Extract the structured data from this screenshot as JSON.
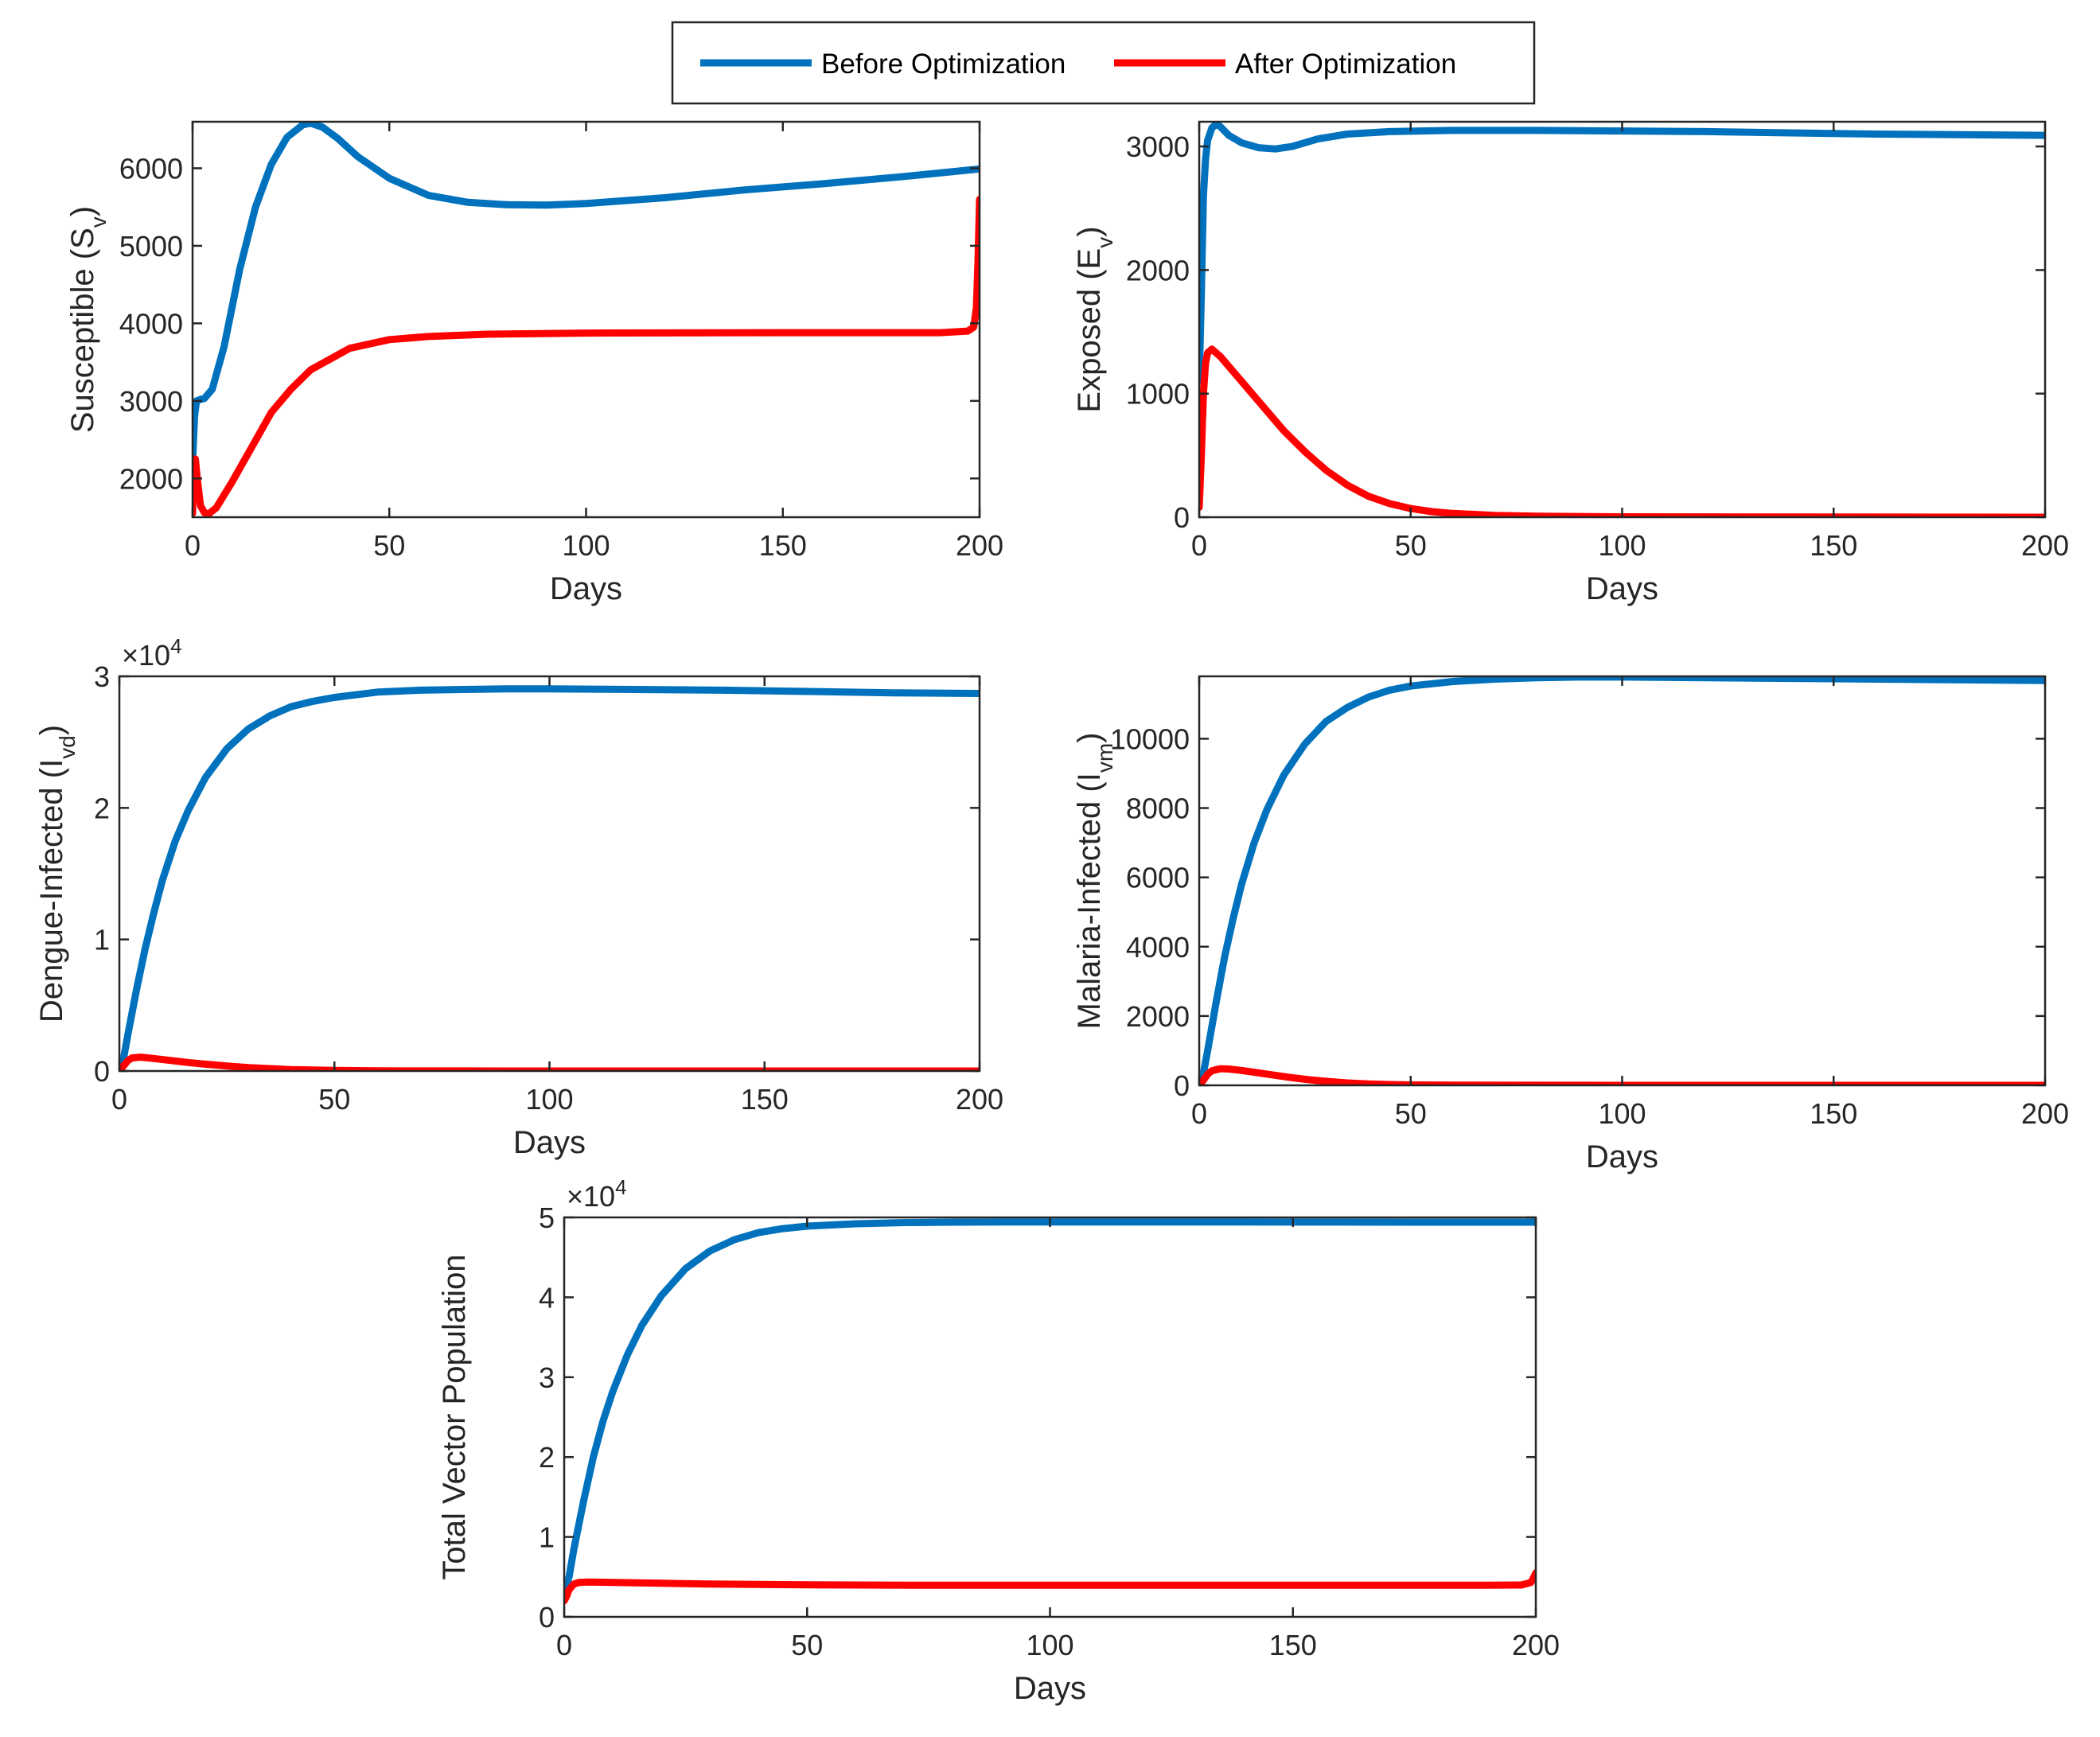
{
  "legend": {
    "entries": [
      {
        "label": "Before Optimization",
        "color": "#0072BD"
      },
      {
        "label": "After Optimization",
        "color": "#FF0000"
      }
    ]
  },
  "chart_data": [
    {
      "id": "susceptible",
      "type": "line",
      "xlabel": "Days",
      "ylabel": "Susceptible (S",
      "ylabel_sub": "v",
      "ylabel_close": ")",
      "exponent": null,
      "xlim": [
        0,
        200
      ],
      "ylim": [
        1500,
        6600
      ],
      "xticks": [
        0,
        50,
        100,
        150,
        200
      ],
      "xtick_labels": [
        "0",
        "50",
        "100",
        "150",
        "200"
      ],
      "yticks": [
        2000,
        3000,
        4000,
        5000,
        6000
      ],
      "ytick_labels": [
        "2000",
        "3000",
        "4000",
        "5000",
        "6000"
      ],
      "series": [
        {
          "name": "Before Optimization",
          "color": "#0072BD",
          "x": [
            0,
            0.5,
            1,
            2,
            3,
            5,
            8,
            12,
            16,
            20,
            24,
            28,
            30,
            33,
            37,
            42,
            50,
            60,
            70,
            80,
            90,
            100,
            120,
            140,
            160,
            180,
            200
          ],
          "y": [
            2200,
            2800,
            3000,
            3020,
            3030,
            3150,
            3700,
            4700,
            5500,
            6050,
            6400,
            6560,
            6580,
            6530,
            6380,
            6150,
            5870,
            5650,
            5560,
            5530,
            5525,
            5545,
            5620,
            5720,
            5800,
            5890,
            5990
          ]
        },
        {
          "name": "After Optimization",
          "color": "#FF0000",
          "x": [
            0,
            0.3,
            0.7,
            1.2,
            2,
            3,
            4,
            6,
            10,
            15,
            20,
            25,
            30,
            40,
            50,
            60,
            75,
            100,
            150,
            190,
            197,
            198.5,
            199.2,
            199.6,
            200
          ],
          "y": [
            1550,
            2200,
            2250,
            2000,
            1650,
            1560,
            1540,
            1620,
            1950,
            2400,
            2850,
            3150,
            3400,
            3680,
            3790,
            3830,
            3860,
            3875,
            3880,
            3880,
            3900,
            3950,
            4200,
            4800,
            5600
          ]
        }
      ]
    },
    {
      "id": "exposed",
      "type": "line",
      "xlabel": "Days",
      "ylabel": "Exposed (E",
      "ylabel_sub": "v",
      "ylabel_close": ")",
      "exponent": null,
      "xlim": [
        0,
        200
      ],
      "ylim": [
        0,
        3200
      ],
      "xticks": [
        0,
        50,
        100,
        150,
        200
      ],
      "xtick_labels": [
        "0",
        "50",
        "100",
        "150",
        "200"
      ],
      "yticks": [
        0,
        1000,
        2000,
        3000
      ],
      "ytick_labels": [
        "0",
        "1000",
        "2000",
        "3000"
      ],
      "series": [
        {
          "name": "Before Optimization",
          "color": "#0072BD",
          "x": [
            0,
            0.5,
            1,
            1.5,
            2,
            3,
            4,
            5,
            7,
            10,
            14,
            18,
            22,
            28,
            35,
            45,
            60,
            80,
            100,
            120,
            140,
            160,
            180,
            200
          ],
          "y": [
            1100,
            1800,
            2600,
            2900,
            3050,
            3150,
            3180,
            3160,
            3090,
            3030,
            2990,
            2980,
            3000,
            3060,
            3100,
            3120,
            3130,
            3130,
            3125,
            3120,
            3110,
            3100,
            3095,
            3090
          ]
        },
        {
          "name": "After Optimization",
          "color": "#FF0000",
          "x": [
            0,
            0.5,
            1,
            1.5,
            2,
            3,
            5,
            8,
            12,
            16,
            20,
            25,
            30,
            35,
            40,
            45,
            50,
            55,
            60,
            70,
            80,
            100,
            150,
            200
          ],
          "y": [
            80,
            500,
            1000,
            1250,
            1330,
            1360,
            1300,
            1180,
            1020,
            860,
            700,
            530,
            380,
            260,
            170,
            110,
            70,
            45,
            30,
            15,
            8,
            3,
            1,
            0
          ]
        }
      ]
    },
    {
      "id": "dengue",
      "type": "line",
      "xlabel": "Days",
      "ylabel": "Dengue-Infected (I",
      "ylabel_sub": "vd",
      "ylabel_close": ")",
      "exponent": "×10",
      "exponent_power": "4",
      "xlim": [
        0,
        200
      ],
      "ylim": [
        0,
        30000
      ],
      "xticks": [
        0,
        50,
        100,
        150,
        200
      ],
      "xtick_labels": [
        "0",
        "50",
        "100",
        "150",
        "200"
      ],
      "yticks": [
        0,
        10000,
        20000,
        30000
      ],
      "ytick_labels": [
        "0",
        "1",
        "2",
        "3"
      ],
      "series": [
        {
          "name": "Before Optimization",
          "color": "#0072BD",
          "x": [
            0,
            1,
            2,
            4,
            6,
            8,
            10,
            13,
            16,
            20,
            25,
            30,
            35,
            40,
            45,
            50,
            60,
            70,
            80,
            90,
            100,
            120,
            140,
            160,
            180,
            200
          ],
          "y": [
            0,
            1000,
            2800,
            6200,
            9300,
            12000,
            14500,
            17500,
            19800,
            22300,
            24500,
            26000,
            27000,
            27700,
            28100,
            28400,
            28800,
            28950,
            29000,
            29050,
            29050,
            29000,
            28950,
            28850,
            28750,
            28700
          ]
        },
        {
          "name": "After Optimization",
          "color": "#FF0000",
          "x": [
            0,
            1,
            2,
            3,
            5,
            8,
            12,
            16,
            20,
            25,
            30,
            40,
            50,
            60,
            80,
            100,
            150,
            200
          ],
          "y": [
            0,
            400,
            800,
            1000,
            1050,
            950,
            800,
            650,
            520,
            380,
            260,
            110,
            40,
            15,
            5,
            2,
            0,
            0
          ]
        }
      ]
    },
    {
      "id": "malaria",
      "type": "line",
      "xlabel": "Days",
      "ylabel": "Malaria-Infected (I",
      "ylabel_sub": "vm",
      "ylabel_close": ")",
      "exponent": null,
      "xlim": [
        0,
        200
      ],
      "ylim": [
        0,
        11800
      ],
      "xticks": [
        0,
        50,
        100,
        150,
        200
      ],
      "xtick_labels": [
        "0",
        "50",
        "100",
        "150",
        "200"
      ],
      "yticks": [
        0,
        2000,
        4000,
        6000,
        8000,
        10000
      ],
      "ytick_labels": [
        "0",
        "2000",
        "4000",
        "6000",
        "8000",
        "10000"
      ],
      "series": [
        {
          "name": "Before Optimization",
          "color": "#0072BD",
          "x": [
            0,
            1,
            2,
            4,
            6,
            8,
            10,
            13,
            16,
            20,
            25,
            30,
            35,
            40,
            45,
            50,
            60,
            70,
            80,
            90,
            100,
            120,
            140,
            160,
            180,
            200
          ],
          "y": [
            0,
            350,
            1000,
            2400,
            3700,
            4800,
            5800,
            7000,
            7950,
            8950,
            9850,
            10500,
            10900,
            11200,
            11400,
            11520,
            11650,
            11720,
            11760,
            11780,
            11780,
            11760,
            11740,
            11720,
            11700,
            11680
          ]
        },
        {
          "name": "After Optimization",
          "color": "#FF0000",
          "x": [
            0,
            1,
            2,
            3,
            5,
            7,
            10,
            14,
            18,
            22,
            26,
            30,
            35,
            40,
            45,
            50,
            60,
            80,
            100,
            150,
            200
          ],
          "y": [
            0,
            150,
            320,
            420,
            480,
            470,
            430,
            360,
            290,
            220,
            160,
            115,
            70,
            40,
            22,
            12,
            5,
            2,
            1,
            0,
            0
          ]
        }
      ]
    },
    {
      "id": "total",
      "type": "line",
      "xlabel": "Days",
      "ylabel": "Total Vector Population",
      "ylabel_sub": "",
      "ylabel_close": "",
      "exponent": "×10",
      "exponent_power": "4",
      "xlim": [
        0,
        200
      ],
      "ylim": [
        0,
        50000
      ],
      "xticks": [
        0,
        50,
        100,
        150,
        200
      ],
      "xtick_labels": [
        "0",
        "50",
        "100",
        "150",
        "200"
      ],
      "yticks": [
        0,
        10000,
        20000,
        30000,
        40000,
        50000
      ],
      "ytick_labels": [
        "0",
        "1",
        "2",
        "3",
        "4",
        "5"
      ],
      "series": [
        {
          "name": "Before Optimization",
          "color": "#0072BD",
          "x": [
            0,
            1,
            2,
            4,
            6,
            8,
            10,
            13,
            16,
            20,
            25,
            30,
            35,
            40,
            45,
            50,
            60,
            70,
            80,
            90,
            100,
            120,
            140,
            160,
            180,
            200
          ],
          "y": [
            3000,
            5000,
            8500,
            14500,
            20000,
            24500,
            28200,
            32800,
            36500,
            40200,
            43600,
            45800,
            47200,
            48100,
            48600,
            48900,
            49200,
            49350,
            49400,
            49420,
            49430,
            49430,
            49420,
            49410,
            49400,
            49400
          ]
        },
        {
          "name": "After Optimization",
          "color": "#FF0000",
          "x": [
            0,
            0.5,
            1,
            2,
            3,
            5,
            10,
            20,
            30,
            50,
            75,
            100,
            150,
            190,
            197,
            199,
            199.6,
            200
          ],
          "y": [
            2000,
            2600,
            3400,
            4100,
            4300,
            4350,
            4300,
            4200,
            4100,
            4000,
            3950,
            3950,
            3950,
            3950,
            3980,
            4300,
            5000,
            5500
          ]
        }
      ]
    }
  ]
}
